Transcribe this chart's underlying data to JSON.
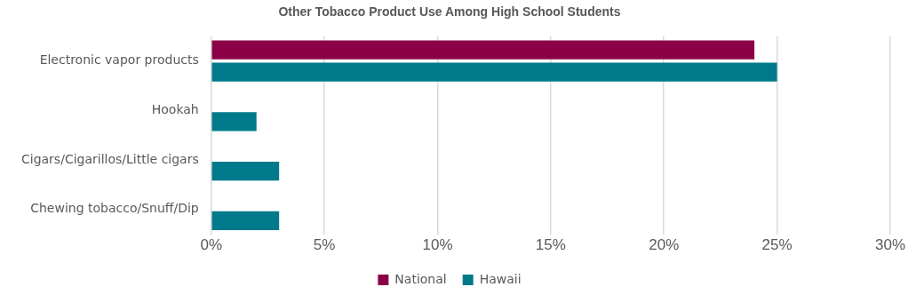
{
  "chart_data": {
    "type": "bar",
    "orientation": "horizontal",
    "title": "Other Tobacco Product Use Among High School Students",
    "categories": [
      "Electronic vapor products",
      "Hookah",
      "Cigars/Cigarillos/Little cigars",
      "Chewing tobacco/Snuff/Dip"
    ],
    "series": [
      {
        "name": "National",
        "color": "#8b0046",
        "values": [
          24,
          null,
          null,
          null
        ]
      },
      {
        "name": "Hawaii",
        "color": "#007a8a",
        "values": [
          25,
          2,
          3,
          3
        ]
      }
    ],
    "xlim": [
      0,
      30
    ],
    "xticks": [
      {
        "value": 0,
        "label": "0%"
      },
      {
        "value": 5,
        "label": "5%"
      },
      {
        "value": 10,
        "label": "10%"
      },
      {
        "value": 15,
        "label": "15%"
      },
      {
        "value": 20,
        "label": "20%"
      },
      {
        "value": 25,
        "label": "25%"
      },
      {
        "value": 30,
        "label": "30%"
      }
    ],
    "grid": "x",
    "legend": "bottom"
  }
}
